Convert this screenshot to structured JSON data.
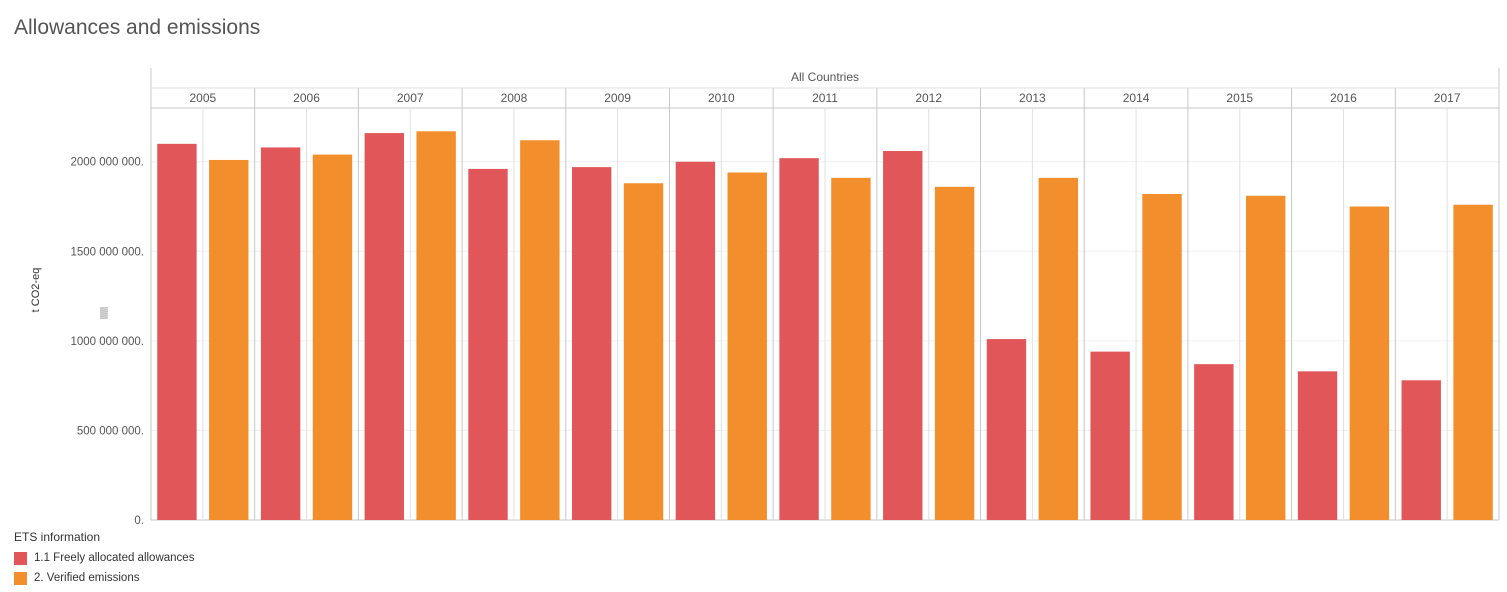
{
  "title": "Allowances and emissions",
  "chart_data": {
    "type": "bar",
    "header": "All Countries",
    "ylabel": "t CO2-eq",
    "ylim": [
      0,
      2300000000
    ],
    "yticks": [
      0,
      500000000,
      1000000000,
      1500000000,
      2000000000
    ],
    "ytick_labels": [
      "0.",
      "500 000 000.",
      "1000 000 000.",
      "1500 000 000.",
      "2000 000 000."
    ],
    "categories": [
      "2005",
      "2006",
      "2007",
      "2008",
      "2009",
      "2010",
      "2011",
      "2012",
      "2013",
      "2014",
      "2015",
      "2016",
      "2017"
    ],
    "series": [
      {
        "name": "1.1 Freely allocated allowances",
        "color": "#e15759",
        "values": [
          2100000000,
          2080000000,
          2160000000,
          1960000000,
          1970000000,
          2000000000,
          2020000000,
          2060000000,
          1010000000,
          940000000,
          870000000,
          830000000,
          780000000
        ]
      },
      {
        "name": "2. Verified emissions",
        "color": "#f28e2b",
        "values": [
          2010000000,
          2040000000,
          2170000000,
          2120000000,
          1880000000,
          1940000000,
          1910000000,
          1860000000,
          1910000000,
          1820000000,
          1810000000,
          1750000000,
          1760000000
        ]
      }
    ],
    "grid": true,
    "legend": {
      "title": "ETS information",
      "position": "bottom-left"
    }
  }
}
